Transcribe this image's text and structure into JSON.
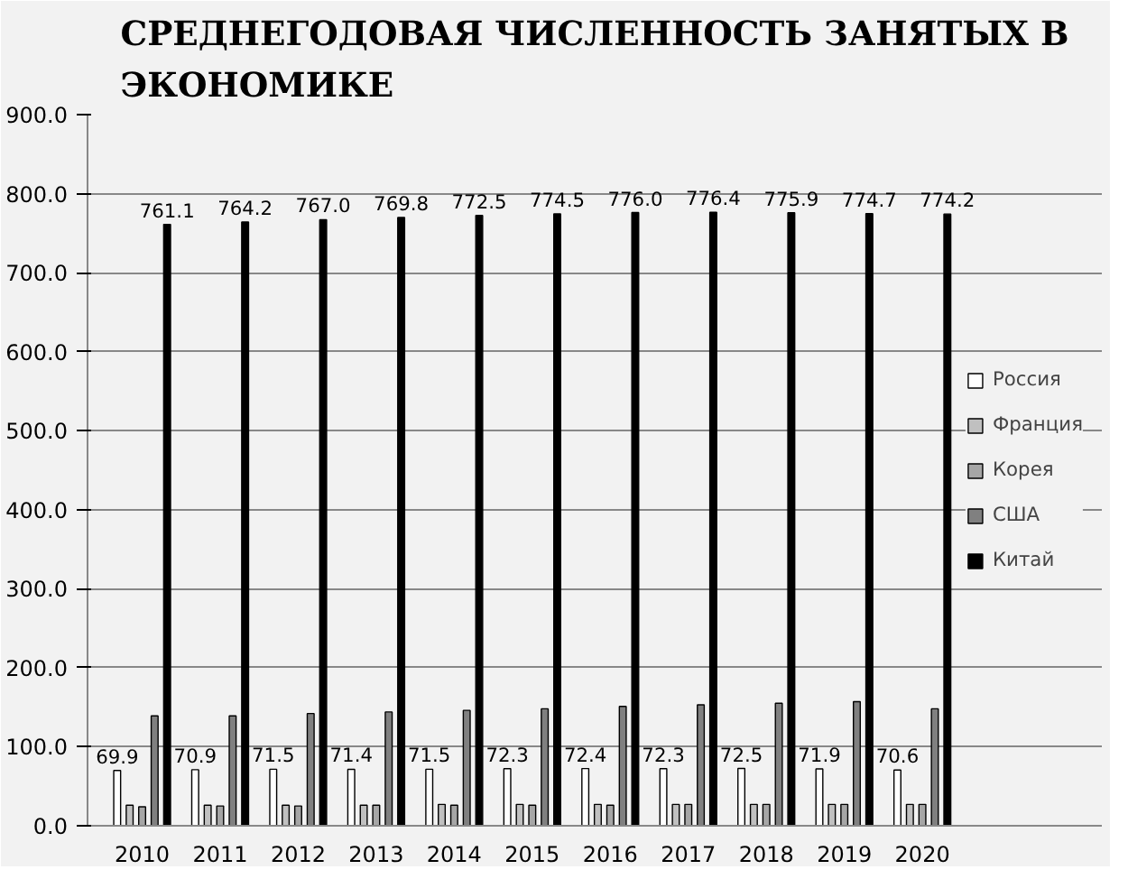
{
  "chart_data": {
    "type": "bar",
    "title": "СРЕДНЕГОДОВАЯ ЧИСЛЕННОСТЬ ЗАНЯТЫХ В ЭКОНОМИКЕ",
    "categories": [
      "2010",
      "2011",
      "2012",
      "2013",
      "2014",
      "2015",
      "2016",
      "2017",
      "2018",
      "2019",
      "2020"
    ],
    "series": [
      {
        "name": "Россия",
        "color": "#ffffff",
        "values": [
          69.9,
          70.9,
          71.5,
          71.4,
          71.5,
          72.3,
          72.4,
          72.3,
          72.5,
          71.9,
          70.6
        ],
        "value_labels": [
          "69.9",
          "70.9",
          "71.5",
          "71.4",
          "71.5",
          "72.3",
          "72.4",
          "72.3",
          "72.5",
          "71.9",
          "70.6"
        ]
      },
      {
        "name": "Франция",
        "color": "#c0c0c0",
        "values": [
          26,
          26,
          26,
          26,
          27,
          27,
          27,
          27,
          27,
          27,
          27
        ]
      },
      {
        "name": "Корея",
        "color": "#a6a6a6",
        "values": [
          24,
          25,
          25,
          26,
          26,
          26,
          26,
          27,
          27,
          27,
          27
        ]
      },
      {
        "name": "США",
        "color": "#808080",
        "values": [
          139,
          139,
          142,
          144,
          146,
          148,
          151,
          153,
          155,
          157,
          148
        ]
      },
      {
        "name": "Китай",
        "color": "#000000",
        "values": [
          761.1,
          764.2,
          767.0,
          769.8,
          772.5,
          774.5,
          776.0,
          776.4,
          775.9,
          774.7,
          774.2
        ],
        "value_labels": [
          "761.1",
          "764.2",
          "767.0",
          "769.8",
          "772.5",
          "774.5",
          "776.0",
          "776.4",
          "775.9",
          "774.7",
          "774.2"
        ]
      }
    ],
    "ylim": [
      0,
      900
    ],
    "yticks": [
      {
        "value": 0,
        "label": "0.0"
      },
      {
        "value": 100,
        "label": "100.0"
      },
      {
        "value": 200,
        "label": "200.0"
      },
      {
        "value": 300,
        "label": "300.0"
      },
      {
        "value": 400,
        "label": "400.0"
      },
      {
        "value": 500,
        "label": "500.0"
      },
      {
        "value": 600,
        "label": "600.0"
      },
      {
        "value": 700,
        "label": "700.0"
      },
      {
        "value": 800,
        "label": "800.0"
      },
      {
        "value": 900,
        "label": "900.0"
      }
    ],
    "grid": "y",
    "legend": "right"
  }
}
